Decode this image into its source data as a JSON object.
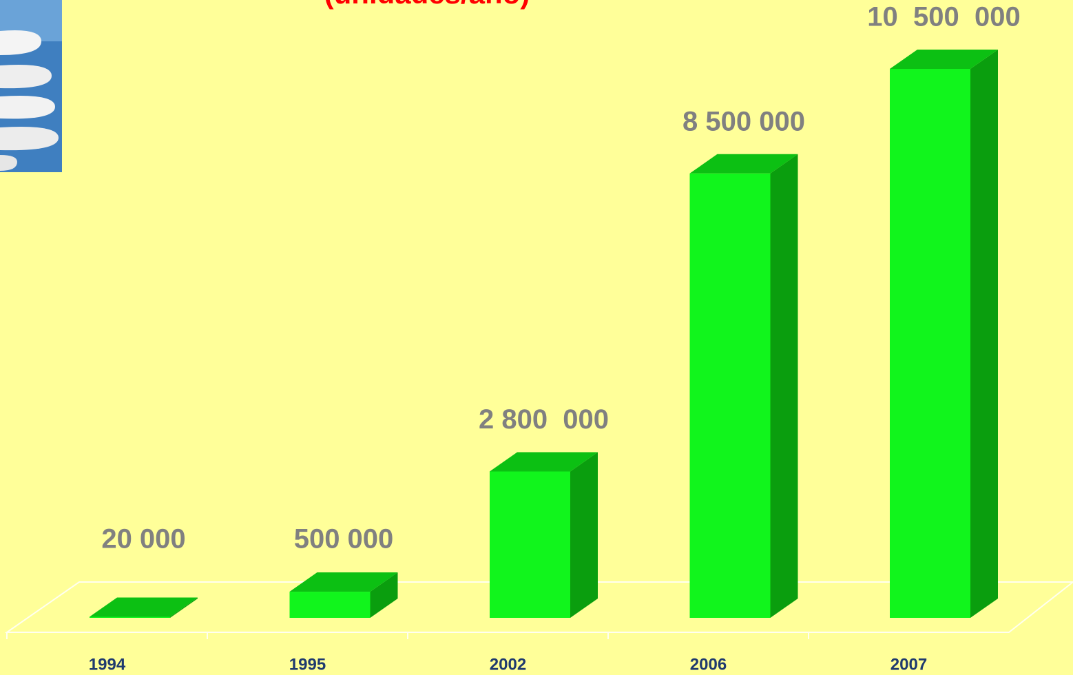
{
  "chart_data": {
    "type": "bar3d",
    "title": "(unidades/año)",
    "categories": [
      "1994",
      "1995",
      "2002",
      "2006",
      "2007"
    ],
    "values": [
      20000,
      500000,
      2800000,
      8500000,
      10500000
    ],
    "value_labels": [
      "20 000",
      "500 000",
      "2 800  000",
      "8 500 000",
      "10  500  000"
    ],
    "color": "#11f51c"
  }
}
